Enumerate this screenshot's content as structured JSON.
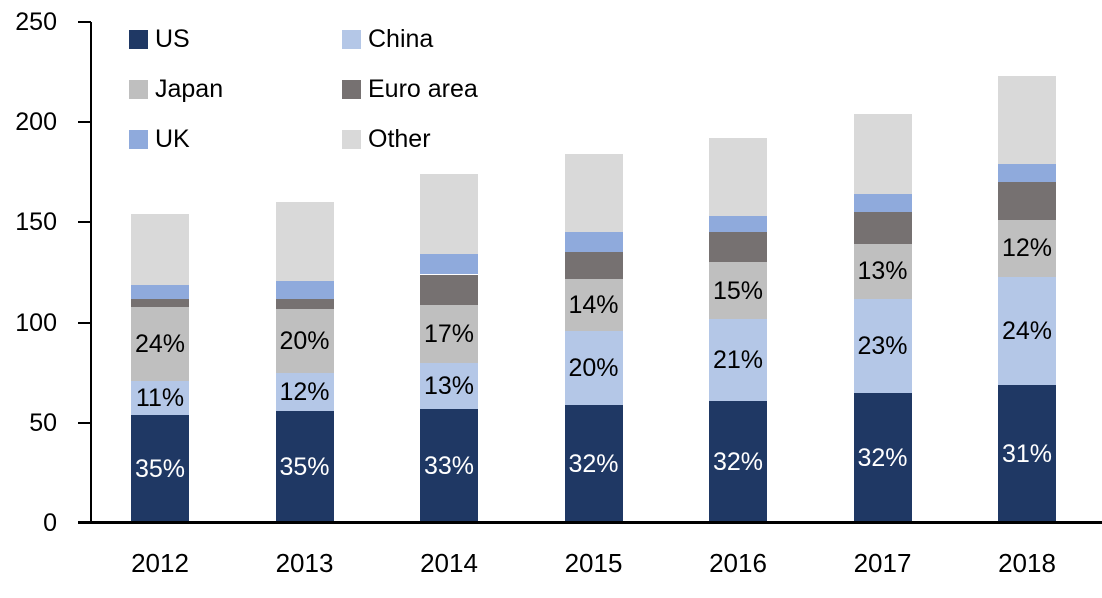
{
  "chart_data": {
    "type": "bar",
    "stacked": true,
    "title": "",
    "xlabel": "",
    "ylabel": "",
    "categories": [
      "2012",
      "2013",
      "2014",
      "2015",
      "2016",
      "2017",
      "2018"
    ],
    "series": [
      {
        "name": "US",
        "color": "#1f3864",
        "values": [
          54,
          56,
          57,
          59,
          61,
          65,
          69
        ],
        "labels": [
          "35%",
          "35%",
          "33%",
          "32%",
          "32%",
          "32%",
          "31%"
        ],
        "label_color": "#ffffff"
      },
      {
        "name": "China",
        "color": "#b4c7e7",
        "values": [
          17,
          19,
          23,
          37,
          41,
          47,
          54
        ],
        "labels": [
          "11%",
          "12%",
          "13%",
          "20%",
          "21%",
          "23%",
          "24%"
        ],
        "label_color": "#000000"
      },
      {
        "name": "Japan",
        "color": "#bfbfbf",
        "values": [
          37,
          32,
          29,
          26,
          28,
          27,
          28
        ],
        "labels": [
          "24%",
          "20%",
          "17%",
          "14%",
          "15%",
          "13%",
          "12%"
        ],
        "label_color": "#000000"
      },
      {
        "name": "Euro area",
        "color": "#767171",
        "values": [
          4,
          5,
          15,
          13,
          15,
          16,
          19
        ],
        "labels": null,
        "label_color": null
      },
      {
        "name": "UK",
        "color": "#8faadc",
        "values": [
          7,
          9,
          10,
          10,
          8,
          9,
          9
        ],
        "labels": null,
        "label_color": null
      },
      {
        "name": "Other",
        "color": "#d9d9d9",
        "values": [
          35,
          39,
          40,
          39,
          39,
          40,
          44
        ],
        "labels": null,
        "label_color": null
      }
    ],
    "totals": [
      154,
      160,
      174,
      184,
      192,
      204,
      223
    ],
    "ylim": [
      0,
      250
    ],
    "yticks": [
      0,
      50,
      100,
      150,
      200,
      250
    ],
    "grid": false,
    "legend_position": "top-left",
    "legend_columns": 2,
    "axis_color": "#000000",
    "background": "#ffffff"
  }
}
